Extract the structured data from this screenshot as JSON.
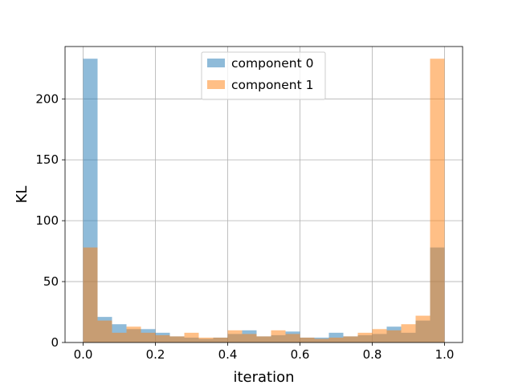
{
  "chart_data": {
    "type": "bar",
    "subtype": "overlaid-histogram",
    "title": "",
    "xlabel": "iteration",
    "ylabel": "KL",
    "xlim": [
      -0.05,
      1.05
    ],
    "ylim": [
      0,
      243
    ],
    "xticks": [
      0.0,
      0.2,
      0.4,
      0.6,
      0.8,
      1.0
    ],
    "xtick_labels": [
      "0.0",
      "0.2",
      "0.4",
      "0.6",
      "0.8",
      "1.0"
    ],
    "yticks": [
      0,
      50,
      100,
      150,
      200
    ],
    "ytick_labels": [
      "0",
      "50",
      "100",
      "150",
      "200"
    ],
    "grid": true,
    "legend_position": "top-center",
    "bin_edges": [
      0.0,
      0.04,
      0.08,
      0.12,
      0.16,
      0.2,
      0.24,
      0.28,
      0.32,
      0.36,
      0.4,
      0.44,
      0.48,
      0.52,
      0.56,
      0.6,
      0.64,
      0.68,
      0.72,
      0.76,
      0.8,
      0.84,
      0.88,
      0.92,
      0.96,
      1.0
    ],
    "series": [
      {
        "name": "component 0",
        "color": "#1f77b4",
        "values": [
          233,
          21,
          15,
          11,
          11,
          8,
          5,
          4,
          3,
          4,
          7,
          10,
          5,
          6,
          9,
          4,
          4,
          8,
          5,
          6,
          7,
          13,
          8,
          18,
          78
        ]
      },
      {
        "name": "component 1",
        "color": "#ff7f0e",
        "values": [
          78,
          18,
          8,
          13,
          8,
          6,
          5,
          8,
          4,
          4,
          10,
          7,
          5,
          10,
          7,
          4,
          3,
          4,
          5,
          8,
          11,
          10,
          15,
          22,
          233
        ]
      }
    ]
  }
}
